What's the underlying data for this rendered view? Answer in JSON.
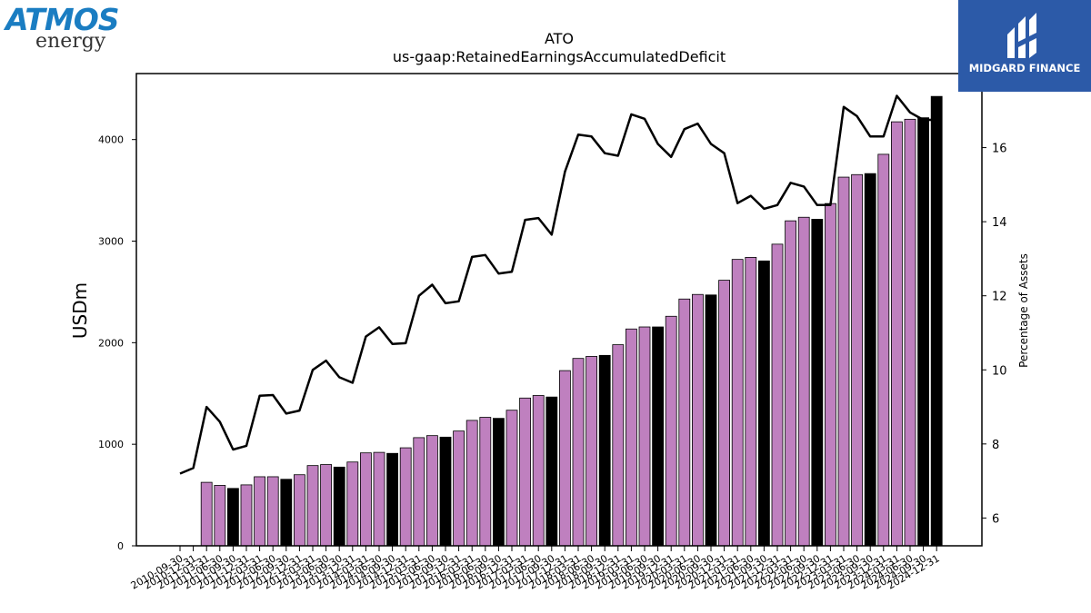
{
  "logos": {
    "atmos_name": "ATMOS",
    "atmos_sub": "energy",
    "midgard": "MIDGARD FINANCE"
  },
  "colors": {
    "bar_purple": "#bf80bf",
    "bar_black": "#000000",
    "line": "#000000",
    "midgard_bg": "#2c5aa8",
    "atmos_blue": "#1a7dc2"
  },
  "chart_data": {
    "type": "bar",
    "title": "ATO",
    "subtitle": "us-gaap:RetainedEarningsAccumulatedDeficit",
    "ylabel": "USDm",
    "y2label": "Percentage of Assets",
    "ylim": [
      0,
      4650
    ],
    "y2lim": [
      5.25,
      18.0
    ],
    "yticks": [
      0,
      1000,
      2000,
      3000,
      4000
    ],
    "y2ticks": [
      6,
      8,
      10,
      12,
      14,
      16
    ],
    "categories": [
      "2010-09-30",
      "2010-12-31",
      "2011-03-31",
      "2011-06-30",
      "2011-09-30",
      "2011-12-31",
      "2012-03-31",
      "2012-06-30",
      "2012-09-30",
      "2012-12-31",
      "2013-03-31",
      "2013-06-30",
      "2013-09-30",
      "2013-12-31",
      "2014-03-31",
      "2014-06-30",
      "2014-09-30",
      "2014-12-31",
      "2015-03-31",
      "2015-06-30",
      "2015-09-30",
      "2015-12-31",
      "2016-03-31",
      "2016-06-30",
      "2016-09-30",
      "2016-12-31",
      "2017-03-31",
      "2017-06-30",
      "2017-09-30",
      "2017-12-31",
      "2018-03-31",
      "2018-06-30",
      "2018-09-30",
      "2018-12-31",
      "2019-03-31",
      "2019-06-30",
      "2019-09-30",
      "2019-12-31",
      "2020-03-31",
      "2020-06-30",
      "2020-09-30",
      "2020-12-31",
      "2021-03-31",
      "2021-06-30",
      "2021-09-30",
      "2021-12-31",
      "2022-03-31",
      "2022-06-30",
      "2022-09-30",
      "2022-12-31",
      "2023-03-31",
      "2023-06-30",
      "2023-09-30",
      "2023-12-31",
      "2024-03-31",
      "2024-06-30",
      "2024-09-30",
      "2024-12-31"
    ],
    "series": [
      {
        "kind": "bar",
        "values": [
          null,
          null,
          625,
          595,
          565,
          600,
          680,
          680,
          655,
          700,
          790,
          800,
          775,
          825,
          915,
          920,
          910,
          965,
          1065,
          1085,
          1070,
          1130,
          1235,
          1265,
          1255,
          1335,
          1455,
          1480,
          1465,
          1725,
          1845,
          1865,
          1875,
          1980,
          2135,
          2155,
          2155,
          2260,
          2430,
          2475,
          2470,
          2615,
          2820,
          2840,
          2805,
          2970,
          3200,
          3235,
          3215,
          3370,
          3630,
          3655,
          3665,
          3855,
          4175,
          4200,
          4215,
          4425
        ],
        "fiscal_year_end": [
          false,
          true,
          false,
          false,
          true,
          false,
          false,
          false,
          true,
          false,
          false,
          false,
          true,
          false,
          false,
          false,
          true,
          false,
          false,
          false,
          true,
          false,
          false,
          false,
          true,
          false,
          false,
          false,
          true,
          false,
          false,
          false,
          true,
          false,
          false,
          false,
          true,
          false,
          false,
          false,
          true,
          false,
          false,
          false,
          true,
          false,
          false,
          false,
          true,
          false,
          false,
          false,
          true,
          false,
          false,
          false,
          true,
          true
        ]
      },
      {
        "kind": "line",
        "axis": "right",
        "values": [
          7.2,
          7.35,
          9.0,
          8.6,
          7.85,
          7.95,
          9.3,
          9.32,
          8.82,
          8.9,
          10.0,
          10.25,
          9.8,
          9.65,
          10.9,
          11.15,
          10.7,
          10.72,
          12.0,
          12.3,
          11.8,
          11.85,
          13.05,
          13.1,
          12.6,
          12.65,
          14.05,
          14.1,
          13.65,
          15.35,
          16.35,
          16.3,
          15.85,
          15.78,
          16.9,
          16.78,
          16.1,
          15.75,
          16.5,
          16.65,
          16.1,
          15.85,
          14.5,
          14.7,
          14.35,
          14.45,
          15.05,
          14.95,
          14.45,
          14.45,
          17.1,
          16.85,
          16.3,
          16.3,
          17.4,
          16.95,
          16.75,
          16.75
        ]
      }
    ],
    "legend": "none",
    "grid": false
  }
}
